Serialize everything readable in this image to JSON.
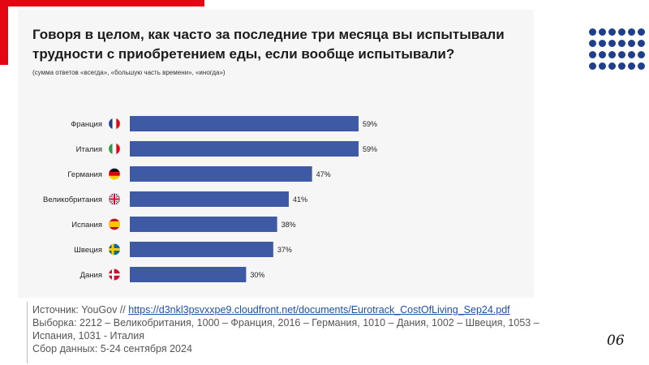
{
  "title": "Говоря в целом, как часто за последние три месяца вы испытывали трудности с приобретением еды, если вообще испытывали?",
  "subtitle": "(сумма ответов «всегда», «большую часть времени», «иногда»)",
  "source": {
    "label": "Источник: YouGov // ",
    "url": "https://d3nkl3psvxxpe9.cloudfront.net/documents/Eurotrack_CostOfLiving_Sep24.pdf",
    "sample": "Выборка: 2212 – Великобритания, 1000 – Франция, 2016 – Германия, 1010 – Дания, 1002 – Швеция, 1053 – Испания, 1031 - Италия",
    "period": "Сбор данных: 5-24 сентября 2024"
  },
  "page_number": "06",
  "colors": {
    "bar": "#3e5aa4",
    "accent": "#e30613",
    "dots": "#1f3f8c"
  },
  "chart_data": {
    "type": "bar",
    "orientation": "horizontal",
    "categories": [
      "Франция",
      "Италия",
      "Германия",
      "Великобритания",
      "Испания",
      "Швеция",
      "Дания"
    ],
    "flags": [
      "france-flag",
      "italy-flag",
      "germany-flag",
      "uk-flag",
      "spain-flag",
      "sweden-flag",
      "denmark-flag"
    ],
    "values": [
      59,
      59,
      47,
      41,
      38,
      37,
      30
    ],
    "value_labels": [
      "59%",
      "59%",
      "47%",
      "41%",
      "38%",
      "37%",
      "30%"
    ],
    "xlim": [
      0,
      59
    ],
    "grid": false
  }
}
